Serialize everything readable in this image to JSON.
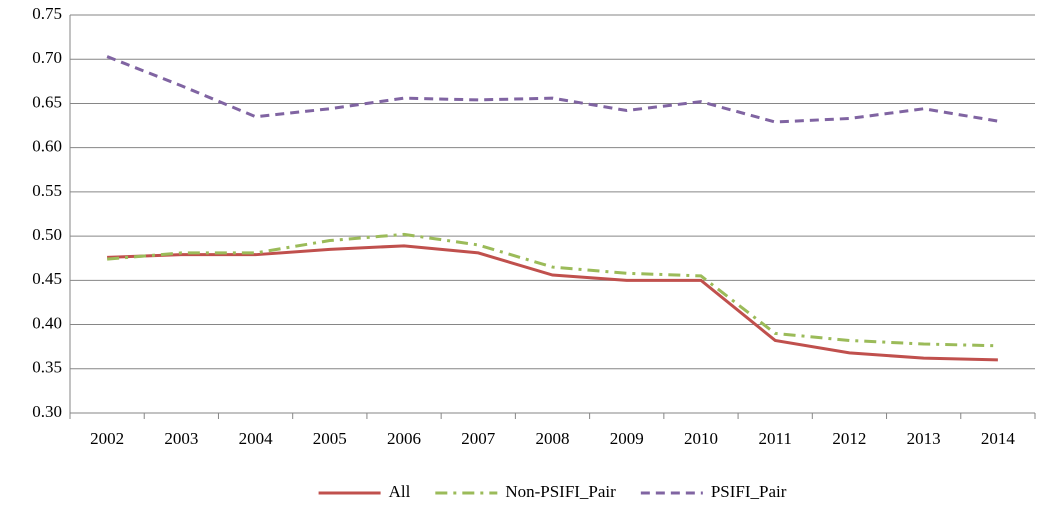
{
  "chart_data": {
    "type": "line",
    "categories": [
      "2002",
      "2003",
      "2004",
      "2005",
      "2006",
      "2007",
      "2008",
      "2009",
      "2010",
      "2011",
      "2012",
      "2013",
      "2014"
    ],
    "series": [
      {
        "name": "All",
        "color": "#c0504d",
        "dash": "solid",
        "values": [
          0.476,
          0.479,
          0.479,
          0.485,
          0.489,
          0.481,
          0.456,
          0.45,
          0.45,
          0.382,
          0.368,
          0.362,
          0.36
        ]
      },
      {
        "name": "Non-PSIFI_Pair",
        "color": "#9bbb59",
        "dash": "dashdot",
        "values": [
          0.474,
          0.481,
          0.481,
          0.495,
          0.502,
          0.49,
          0.465,
          0.458,
          0.455,
          0.39,
          0.382,
          0.378,
          0.376
        ]
      },
      {
        "name": "PSIFI_Pair",
        "color": "#8064a2",
        "dash": "dash",
        "values": [
          0.703,
          0.67,
          0.635,
          0.644,
          0.656,
          0.654,
          0.656,
          0.642,
          0.652,
          0.629,
          0.633,
          0.644,
          0.63
        ]
      }
    ],
    "ylim": [
      0.3,
      0.75
    ],
    "yticks": [
      {
        "value": 0.3,
        "label": "0.30"
      },
      0.35,
      {
        "value": 0.4,
        "label": "0.40"
      },
      0.45,
      {
        "value": 0.5,
        "label": "0.50"
      },
      0.55,
      {
        "value": 0.6,
        "label": "0.60"
      },
      0.65,
      {
        "value": 0.7,
        "label": "0.70"
      },
      0.75
    ],
    "grid": true,
    "legend": "bottom"
  }
}
